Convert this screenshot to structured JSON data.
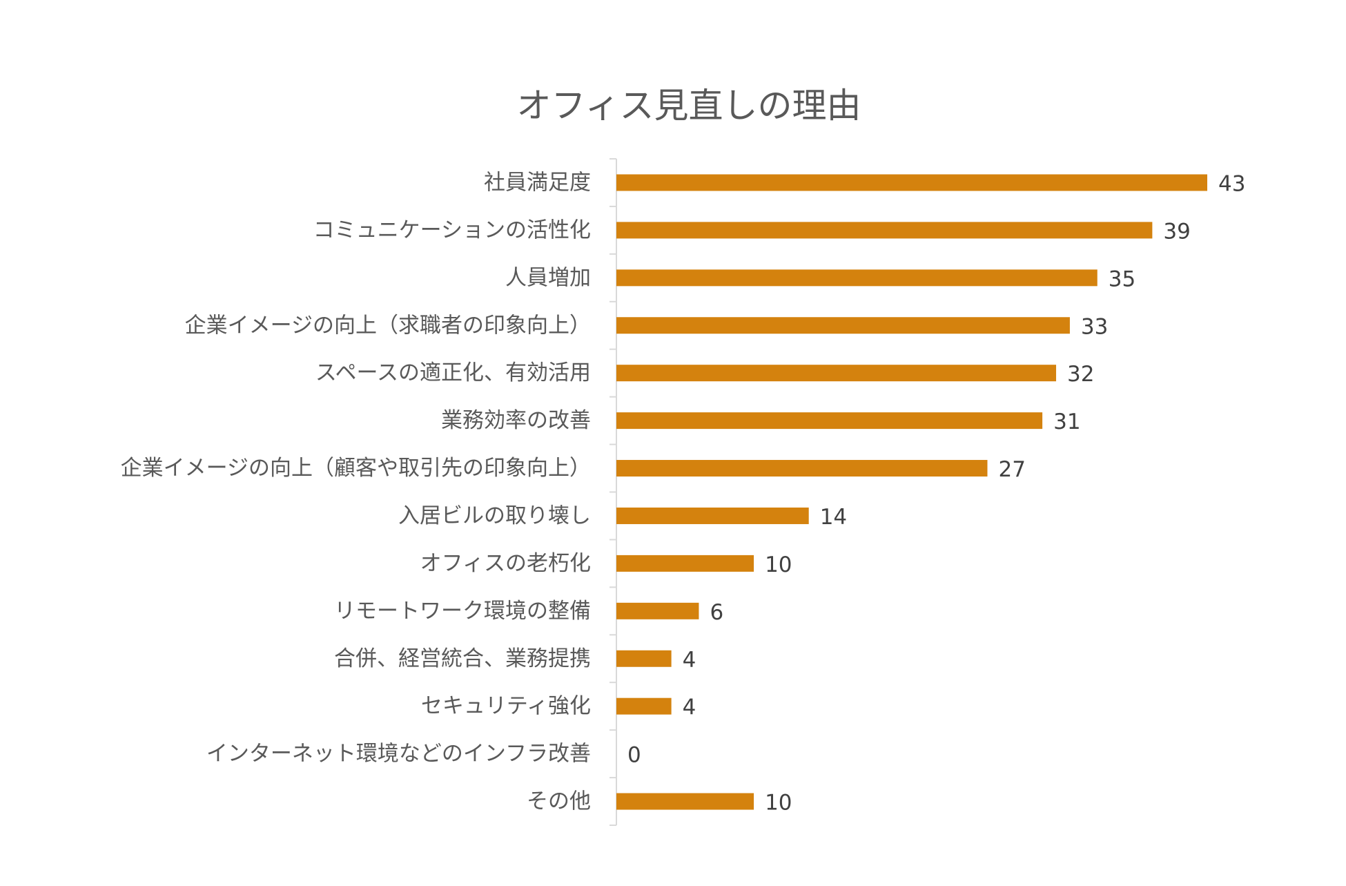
{
  "chart_data": {
    "type": "bar",
    "orientation": "horizontal",
    "title": "オフィス見直しの理由",
    "xlabel": "",
    "ylabel": "",
    "categories": [
      "社員満足度",
      "コミュニケーションの活性化",
      "人員増加",
      "企業イメージの向上（求職者の印象向上）",
      "スペースの適正化、有効活用",
      "業務効率の改善",
      "企業イメージの向上（顧客や取引先の印象向上）",
      "入居ビルの取り壊し",
      "オフィスの老朽化",
      "リモートワーク環境の整備",
      "合併、経営統合、業務提携",
      "セキュリティ強化",
      "インターネット環境などのインフラ改善",
      "その他"
    ],
    "values": [
      43,
      39,
      35,
      33,
      32,
      31,
      27,
      14,
      10,
      6,
      4,
      4,
      0,
      10
    ],
    "xlim": [
      0,
      43
    ],
    "grid": false,
    "legend": "none",
    "data_labels": true,
    "colors": {
      "bar": "#D4820E",
      "axis": "#D9D9D9",
      "title": "#595959",
      "category_text": "#595959",
      "value_text": "#404040"
    }
  }
}
